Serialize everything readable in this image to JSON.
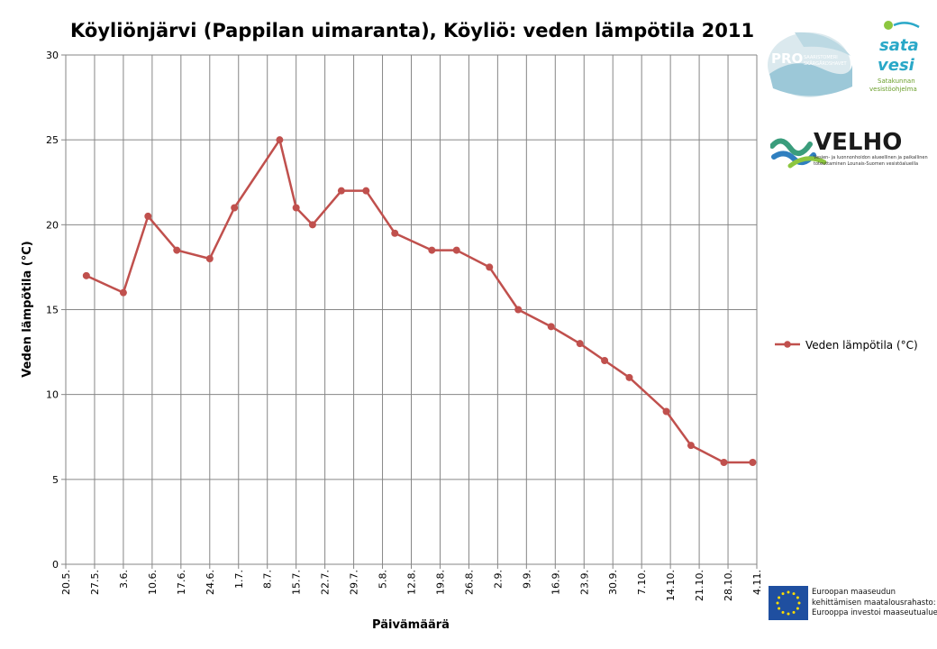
{
  "title": "Köyliönjärvi (Pappilan uimaranta), Köyliö: veden lämpötila 2011",
  "colors": {
    "series": "#c0504d",
    "grid": "#868686",
    "axis": "#868686",
    "eu_flag": "#1f4fa0",
    "eu_star": "#ffdd00"
  },
  "chart_data": {
    "type": "line",
    "title": "Köyliönjärvi (Pappilan uimaranta), Köyliö: veden lämpötila 2011",
    "xlabel": "Päivämäärä",
    "ylabel": "Veden lämpötila (°C)",
    "ylim": [
      0,
      30
    ],
    "yticks": [
      0,
      5,
      10,
      15,
      20,
      25,
      30
    ],
    "xlim_days": [
      140,
      308
    ],
    "xticks": [
      {
        "label": "20.5.",
        "day": 140
      },
      {
        "label": "27.5.",
        "day": 147
      },
      {
        "label": "3.6.",
        "day": 154
      },
      {
        "label": "10.6.",
        "day": 161
      },
      {
        "label": "17.6.",
        "day": 168
      },
      {
        "label": "24.6.",
        "day": 175
      },
      {
        "label": "1.7.",
        "day": 182
      },
      {
        "label": "8.7.",
        "day": 189
      },
      {
        "label": "15.7.",
        "day": 196
      },
      {
        "label": "22.7.",
        "day": 203
      },
      {
        "label": "29.7.",
        "day": 210
      },
      {
        "label": "5.8.",
        "day": 217
      },
      {
        "label": "12.8.",
        "day": 224
      },
      {
        "label": "19.8.",
        "day": 231
      },
      {
        "label": "26.8.",
        "day": 238
      },
      {
        "label": "2.9.",
        "day": 245
      },
      {
        "label": "9.9.",
        "day": 252
      },
      {
        "label": "16.9.",
        "day": 259
      },
      {
        "label": "23.9.",
        "day": 266
      },
      {
        "label": "30.9.",
        "day": 273
      },
      {
        "label": "7.10.",
        "day": 280
      },
      {
        "label": "14.10.",
        "day": 287
      },
      {
        "label": "21.10.",
        "day": 294
      },
      {
        "label": "28.10.",
        "day": 301
      },
      {
        "label": "4.11.",
        "day": 308
      }
    ],
    "grid": true,
    "legend_position": "right",
    "series": [
      {
        "name": "Veden lämpötila (°C)",
        "points": [
          {
            "day": 145,
            "value": 17
          },
          {
            "day": 154,
            "value": 16
          },
          {
            "day": 160,
            "value": 20.5
          },
          {
            "day": 167,
            "value": 18.5
          },
          {
            "day": 175,
            "value": 18
          },
          {
            "day": 181,
            "value": 21
          },
          {
            "day": 192,
            "value": 25
          },
          {
            "day": 196,
            "value": 21
          },
          {
            "day": 200,
            "value": 20
          },
          {
            "day": 207,
            "value": 22
          },
          {
            "day": 213,
            "value": 22
          },
          {
            "day": 220,
            "value": 19.5
          },
          {
            "day": 229,
            "value": 18.5
          },
          {
            "day": 235,
            "value": 18.5
          },
          {
            "day": 243,
            "value": 17.5
          },
          {
            "day": 250,
            "value": 15
          },
          {
            "day": 258,
            "value": 14
          },
          {
            "day": 265,
            "value": 13
          },
          {
            "day": 271,
            "value": 12
          },
          {
            "day": 277,
            "value": 11
          },
          {
            "day": 286,
            "value": 9
          },
          {
            "day": 292,
            "value": 7
          },
          {
            "day": 300,
            "value": 6
          },
          {
            "day": 307,
            "value": 6
          }
        ]
      }
    ]
  },
  "logos": {
    "pro_main": "PRO",
    "pro_sub1": "SAARISTOMERI",
    "pro_sub2": "SKÄRGÅRDSHAVET",
    "satavesi_top": "sata",
    "satavesi_bottom": "vesi",
    "satavesi_caption1": "Satakunnan",
    "satavesi_caption2": "vesistöohjelma",
    "velho_name": "VELHO",
    "velho_caption1": "Vesien- ja luonnonhoidon alueellinen ja paikallinen",
    "velho_caption2": "toteuttaminen Lounais-Suomen vesistöalueilla"
  },
  "eu": {
    "line1": "Euroopan maaseudun",
    "line2": "kehittämisen maatalousrahasto:",
    "line3": "Eurooppa investoi maaseutualueisiin"
  }
}
